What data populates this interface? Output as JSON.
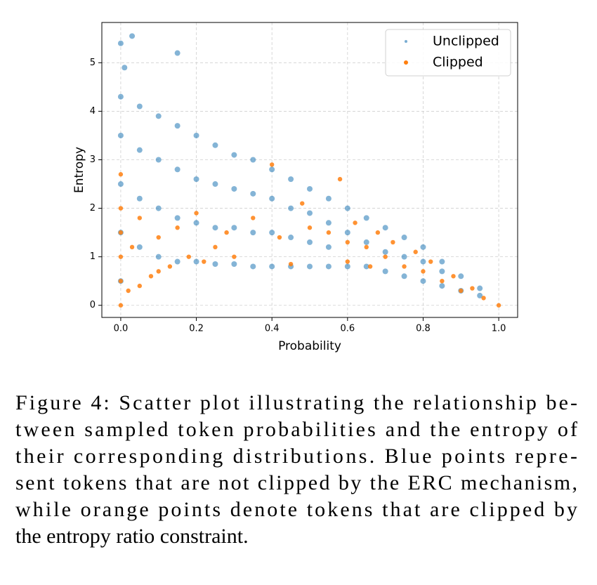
{
  "chart_data": {
    "type": "scatter",
    "xlabel": "Probability",
    "ylabel": "Entropy",
    "xlim": [
      -0.05,
      1.05
    ],
    "ylim": [
      -0.25,
      5.83
    ],
    "xticks": [
      {
        "value": 0,
        "label": "0.0"
      },
      0.2,
      0.4,
      0.6,
      0.8,
      {
        "value": 1,
        "label": "1.0"
      }
    ],
    "yticks": [
      0,
      1,
      2,
      3,
      4,
      5
    ],
    "grid": true,
    "legend": "upper right",
    "series": [
      {
        "name": "Unclipped",
        "color": "#1f77b4",
        "x": [
          0,
          0,
          0,
          0,
          0,
          0.05,
          0.05,
          0.05,
          0.05,
          0.1,
          0.1,
          0.1,
          0.1,
          0.15,
          0.15,
          0.15,
          0.15,
          0.2,
          0.2,
          0.2,
          0.2,
          0.25,
          0.25,
          0.25,
          0.25,
          0.3,
          0.3,
          0.3,
          0.3,
          0.35,
          0.35,
          0.35,
          0.35,
          0.4,
          0.4,
          0.4,
          0.4,
          0.45,
          0.45,
          0.45,
          0.45,
          0.5,
          0.5,
          0.5,
          0.5,
          0.55,
          0.55,
          0.55,
          0.55,
          0.6,
          0.6,
          0.6,
          0.65,
          0.65,
          0.65,
          0.7,
          0.7,
          0.7,
          0.75,
          0.75,
          0.75,
          0.8,
          0.8,
          0.8,
          0.85,
          0.85,
          0.85,
          0.9,
          0.9,
          0.95,
          0.95,
          0,
          0.03,
          0.15,
          0.01
        ],
        "y": [
          0.5,
          1.5,
          2.5,
          3.5,
          4.3,
          1.2,
          2.2,
          3.2,
          4.1,
          1.0,
          2.0,
          3.0,
          3.9,
          0.9,
          1.8,
          2.8,
          3.7,
          0.9,
          1.7,
          2.6,
          3.5,
          0.85,
          1.6,
          2.5,
          3.3,
          0.85,
          1.6,
          2.4,
          3.1,
          0.8,
          1.5,
          2.3,
          3.0,
          0.8,
          1.5,
          2.2,
          2.8,
          0.8,
          1.4,
          2.0,
          2.6,
          0.8,
          1.3,
          1.9,
          2.4,
          0.8,
          1.2,
          1.7,
          2.2,
          0.8,
          1.5,
          2.0,
          0.8,
          1.3,
          1.8,
          0.7,
          1.1,
          1.6,
          0.6,
          1.0,
          1.4,
          0.5,
          0.9,
          1.2,
          0.4,
          0.7,
          0.9,
          0.3,
          0.6,
          0.2,
          0.35,
          5.4,
          5.55,
          5.2,
          4.9
        ]
      },
      {
        "name": "Clipped",
        "color": "#ff7f0e",
        "x": [
          0,
          0,
          0,
          0,
          0,
          0,
          0.02,
          0.03,
          0.05,
          0.05,
          0.08,
          0.1,
          0.1,
          0.13,
          0.15,
          0.18,
          0.2,
          0.22,
          0.25,
          0.28,
          0.3,
          0.35,
          0.4,
          0.42,
          0.48,
          0.55,
          0.58,
          0.6,
          0.62,
          0.65,
          0.68,
          0.7,
          0.72,
          0.75,
          0.78,
          0.8,
          0.82,
          0.85,
          0.88,
          0.9,
          0.93,
          0.96,
          1.0,
          0.6,
          0.66,
          0.5,
          0.45
        ],
        "y": [
          0,
          0.5,
          1.0,
          1.5,
          2.0,
          2.7,
          0.3,
          1.2,
          0.4,
          1.8,
          0.6,
          1.4,
          0.7,
          0.8,
          1.6,
          1.0,
          1.9,
          0.9,
          1.2,
          1.5,
          1.0,
          1.8,
          2.9,
          1.4,
          2.1,
          1.5,
          2.6,
          1.3,
          1.7,
          1.2,
          1.5,
          1.0,
          1.3,
          0.8,
          1.1,
          0.7,
          0.9,
          0.5,
          0.6,
          0.3,
          0.35,
          0.15,
          0.0,
          0.9,
          0.8,
          1.6,
          0.85
        ]
      }
    ]
  },
  "caption": {
    "lines": [
      "Figure 4: Scatter plot illustrating the relationship be-",
      "tween sampled token probabilities and the entropy of",
      "their corresponding distributions. Blue points repre-",
      "sent tokens that are not clipped by the ERC mechanism,",
      "while orange points denote tokens that are clipped by",
      "the entropy ratio constraint."
    ]
  }
}
